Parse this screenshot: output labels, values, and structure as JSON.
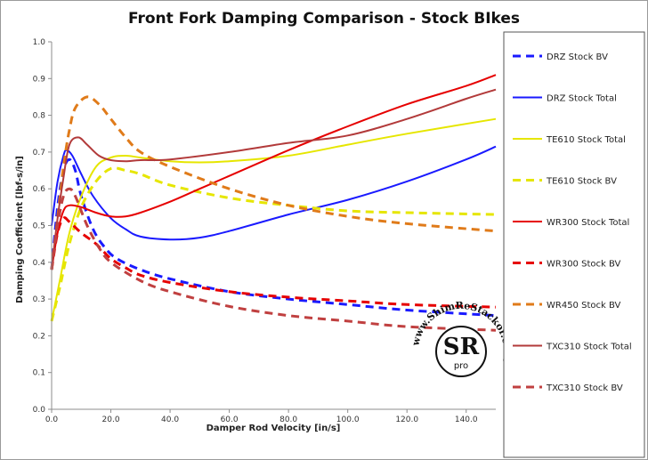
{
  "chart_data": {
    "type": "line",
    "title": "Front Fork Damping Comparison  - Stock BIkes",
    "xlabel": "Damper Rod Velocity [in/s]",
    "ylabel": "Damping Coefficient [lbf-s/in]",
    "xlim": [
      0,
      150
    ],
    "ylim": [
      0,
      1.0
    ],
    "xticks": [
      0,
      20,
      40,
      60,
      80,
      100,
      120,
      140
    ],
    "xtick_labels": [
      "0.0",
      "20.0",
      "40.0",
      "60.0",
      "80.0",
      "100.0",
      "120.0",
      "140.0"
    ],
    "yticks": [
      0,
      0.1,
      0.2,
      0.3,
      0.4,
      0.5,
      0.6,
      0.7,
      0.8,
      0.9,
      1.0
    ],
    "ytick_labels": [
      "0.0",
      "0.1",
      "0.2",
      "0.3",
      "0.4",
      "0.5",
      "0.6",
      "0.7",
      "0.8",
      "0.9",
      "1.0"
    ],
    "grid": false,
    "legend_position": "right",
    "series": [
      {
        "name": "DRZ Stock BV",
        "color": "#1a1aff",
        "dash": true,
        "points": [
          [
            0,
            0.38
          ],
          [
            2,
            0.55
          ],
          [
            4,
            0.65
          ],
          [
            6,
            0.68
          ],
          [
            8,
            0.65
          ],
          [
            10,
            0.58
          ],
          [
            14,
            0.49
          ],
          [
            18,
            0.44
          ],
          [
            22,
            0.41
          ],
          [
            30,
            0.38
          ],
          [
            40,
            0.355
          ],
          [
            60,
            0.32
          ],
          [
            80,
            0.3
          ],
          [
            100,
            0.285
          ],
          [
            120,
            0.27
          ],
          [
            150,
            0.255
          ]
        ]
      },
      {
        "name": "DRZ Stock Total",
        "color": "#1a1aff",
        "dash": false,
        "points": [
          [
            0,
            0.5
          ],
          [
            2,
            0.62
          ],
          [
            4,
            0.69
          ],
          [
            5,
            0.705
          ],
          [
            7,
            0.69
          ],
          [
            10,
            0.64
          ],
          [
            14,
            0.58
          ],
          [
            20,
            0.52
          ],
          [
            25,
            0.49
          ],
          [
            30,
            0.47
          ],
          [
            40,
            0.462
          ],
          [
            50,
            0.467
          ],
          [
            60,
            0.485
          ],
          [
            80,
            0.53
          ],
          [
            100,
            0.57
          ],
          [
            120,
            0.62
          ],
          [
            140,
            0.68
          ],
          [
            150,
            0.715
          ]
        ]
      },
      {
        "name": "TE610 Stock Total",
        "color": "#e6e600",
        "dash": false,
        "points": [
          [
            0,
            0.24
          ],
          [
            3,
            0.36
          ],
          [
            6,
            0.48
          ],
          [
            10,
            0.58
          ],
          [
            15,
            0.66
          ],
          [
            20,
            0.685
          ],
          [
            25,
            0.69
          ],
          [
            30,
            0.685
          ],
          [
            40,
            0.675
          ],
          [
            50,
            0.672
          ],
          [
            60,
            0.675
          ],
          [
            80,
            0.69
          ],
          [
            100,
            0.72
          ],
          [
            120,
            0.75
          ],
          [
            150,
            0.79
          ]
        ]
      },
      {
        "name": "TE610 Stock BV",
        "color": "#e6e600",
        "dash": true,
        "points": [
          [
            0,
            0.24
          ],
          [
            3,
            0.34
          ],
          [
            6,
            0.45
          ],
          [
            10,
            0.55
          ],
          [
            15,
            0.62
          ],
          [
            20,
            0.655
          ],
          [
            25,
            0.65
          ],
          [
            30,
            0.64
          ],
          [
            40,
            0.61
          ],
          [
            60,
            0.575
          ],
          [
            80,
            0.555
          ],
          [
            100,
            0.54
          ],
          [
            120,
            0.535
          ],
          [
            150,
            0.53
          ]
        ]
      },
      {
        "name": "WR300 Stock Total",
        "color": "#e60000",
        "dash": false,
        "points": [
          [
            0,
            0.38
          ],
          [
            2,
            0.48
          ],
          [
            4,
            0.54
          ],
          [
            6,
            0.555
          ],
          [
            10,
            0.55
          ],
          [
            15,
            0.535
          ],
          [
            20,
            0.525
          ],
          [
            25,
            0.525
          ],
          [
            30,
            0.535
          ],
          [
            40,
            0.565
          ],
          [
            50,
            0.6
          ],
          [
            60,
            0.635
          ],
          [
            80,
            0.705
          ],
          [
            100,
            0.77
          ],
          [
            120,
            0.83
          ],
          [
            140,
            0.88
          ],
          [
            150,
            0.91
          ]
        ]
      },
      {
        "name": "WR300 Stock BV",
        "color": "#e60000",
        "dash": true,
        "points": [
          [
            0,
            0.38
          ],
          [
            2,
            0.48
          ],
          [
            4,
            0.52
          ],
          [
            6,
            0.51
          ],
          [
            10,
            0.48
          ],
          [
            15,
            0.45
          ],
          [
            20,
            0.41
          ],
          [
            25,
            0.385
          ],
          [
            30,
            0.365
          ],
          [
            40,
            0.345
          ],
          [
            60,
            0.32
          ],
          [
            80,
            0.305
          ],
          [
            100,
            0.295
          ],
          [
            120,
            0.285
          ],
          [
            150,
            0.278
          ]
        ]
      },
      {
        "name": "WR450 Stock BV",
        "color": "#e07b1a",
        "dash": true,
        "points": [
          [
            0,
            0.38
          ],
          [
            2,
            0.52
          ],
          [
            4,
            0.66
          ],
          [
            6,
            0.76
          ],
          [
            8,
            0.82
          ],
          [
            12,
            0.85
          ],
          [
            16,
            0.83
          ],
          [
            20,
            0.79
          ],
          [
            25,
            0.74
          ],
          [
            30,
            0.7
          ],
          [
            40,
            0.66
          ],
          [
            60,
            0.6
          ],
          [
            80,
            0.555
          ],
          [
            100,
            0.525
          ],
          [
            120,
            0.505
          ],
          [
            150,
            0.485
          ]
        ]
      },
      {
        "name": "TXC310 Stock Total",
        "color": "#b23a3a",
        "dash": false,
        "points": [
          [
            0,
            0.38
          ],
          [
            2,
            0.52
          ],
          [
            4,
            0.63
          ],
          [
            6,
            0.72
          ],
          [
            9,
            0.74
          ],
          [
            12,
            0.72
          ],
          [
            16,
            0.69
          ],
          [
            20,
            0.678
          ],
          [
            25,
            0.675
          ],
          [
            30,
            0.678
          ],
          [
            40,
            0.68
          ],
          [
            60,
            0.7
          ],
          [
            80,
            0.725
          ],
          [
            100,
            0.745
          ],
          [
            120,
            0.79
          ],
          [
            140,
            0.845
          ],
          [
            150,
            0.87
          ]
        ]
      },
      {
        "name": "TXC310 Stock BV",
        "color": "#c04040",
        "dash": true,
        "points": [
          [
            0,
            0.38
          ],
          [
            2,
            0.5
          ],
          [
            4,
            0.58
          ],
          [
            6,
            0.6
          ],
          [
            8,
            0.58
          ],
          [
            12,
            0.5
          ],
          [
            16,
            0.44
          ],
          [
            20,
            0.4
          ],
          [
            30,
            0.35
          ],
          [
            40,
            0.32
          ],
          [
            60,
            0.28
          ],
          [
            80,
            0.255
          ],
          [
            100,
            0.24
          ],
          [
            120,
            0.225
          ],
          [
            150,
            0.215
          ]
        ]
      }
    ]
  },
  "watermark": {
    "ring_text": "www.ShimReStackor.com",
    "logo_main": "SR",
    "logo_sub": "pro"
  }
}
